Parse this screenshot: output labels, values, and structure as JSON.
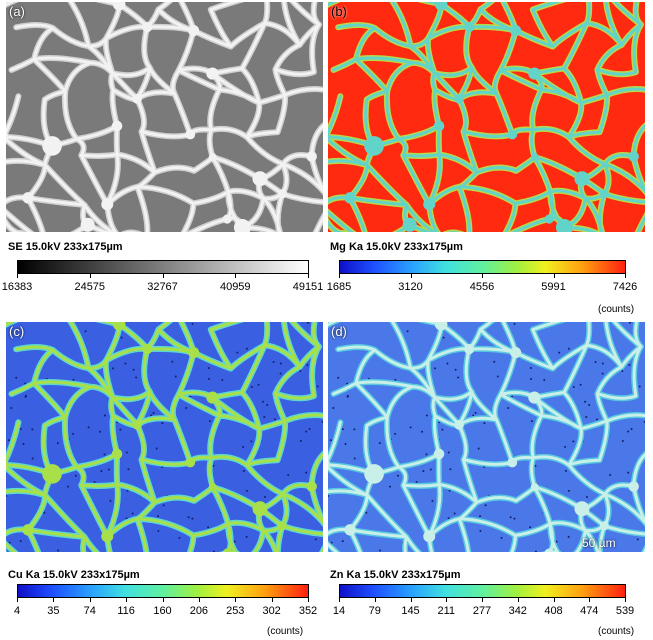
{
  "panels": [
    {
      "label": "(a)",
      "caption": "SE 15.0kV  233x175µm",
      "ticks": [
        "16383",
        "24575",
        "32767",
        "40959",
        "49151"
      ],
      "units": "",
      "colorbar": "gray",
      "bg": "#7a7a7a",
      "network": "#f2f2f2",
      "halo": "#cfcfcf"
    },
    {
      "label": "(b)",
      "caption": "Mg Ka 15.0kV  233x175µm",
      "ticks": [
        "1685",
        "3120",
        "4556",
        "5991",
        "7426"
      ],
      "units": "(counts)",
      "colorbar": "jet",
      "bg": "#ff2a10",
      "network": "#62d3c8",
      "halo": "#b8d84a"
    },
    {
      "label": "(c)",
      "caption": "Cu Ka 15.0kV  233x175µm",
      "ticks": [
        "4",
        "35",
        "74",
        "116",
        "160",
        "206",
        "253",
        "302",
        "352"
      ],
      "units": "(counts)",
      "colorbar": "jet",
      "bg": "#3a5fe0",
      "network": "#a8e04a",
      "halo": "#5fd6d0"
    },
    {
      "label": "(d)",
      "caption": "Zn Ka 15.0kV  233x175µm",
      "ticks": [
        "14",
        "79",
        "145",
        "211",
        "277",
        "342",
        "408",
        "474",
        "539"
      ],
      "units": "(counts)",
      "colorbar": "jet",
      "bg": "#4a78e8",
      "network": "#c8f0e8",
      "halo": "#58c8e0"
    }
  ],
  "scalebar": {
    "label": "50 µm"
  }
}
